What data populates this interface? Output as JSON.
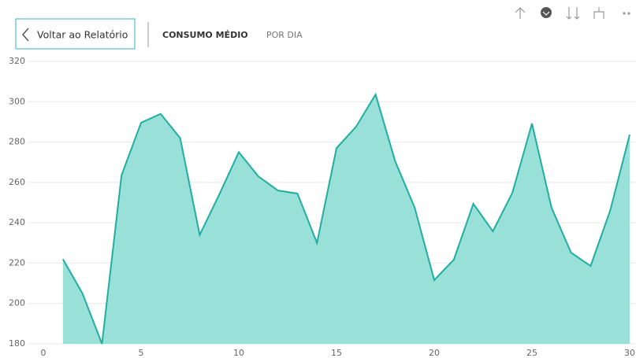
{
  "header": {
    "back_button": "Voltar ao Relatório",
    "tabs": [
      "CONSUMO MÉDIO",
      "POR DIA"
    ]
  },
  "chart_data": {
    "type": "area",
    "x": [
      1,
      2,
      3,
      4,
      5,
      6,
      7,
      8,
      9,
      10,
      11,
      12,
      13,
      14,
      15,
      16,
      17,
      18,
      19,
      20,
      21,
      22,
      23,
      24,
      25,
      26,
      27,
      28,
      29,
      30
    ],
    "series": [
      {
        "name": "Consumo médio",
        "color": "#1fae9f",
        "fill": "#99e1d8",
        "values": [
          222,
          205,
          180,
          263.5,
          289.6,
          294,
          282,
          234,
          254,
          275,
          263,
          256,
          254.5,
          230,
          277,
          287.6,
          303.6,
          270.5,
          247.5,
          211.6,
          221.7,
          249.4,
          235.8,
          254.9,
          289.2,
          247.5,
          225.2,
          218.6,
          246,
          283.7
        ]
      }
    ],
    "xlim": [
      0,
      30
    ],
    "xticks": [
      0,
      5,
      10,
      15,
      20,
      25,
      30
    ],
    "ylim": [
      180,
      320
    ],
    "yticks": [
      180,
      200,
      220,
      240,
      260,
      280,
      300,
      320
    ],
    "grid": true
  }
}
